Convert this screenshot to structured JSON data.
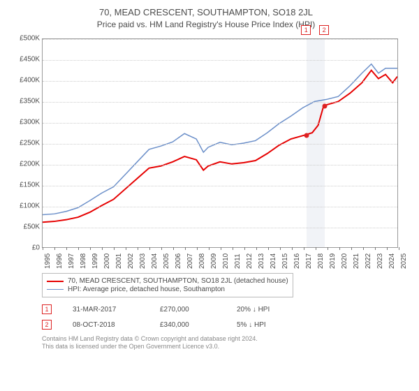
{
  "title": "70, MEAD CRESCENT, SOUTHAMPTON, SO18 2JL",
  "subtitle": "Price paid vs. HM Land Registry's House Price Index (HPI)",
  "chart": {
    "type": "line",
    "background_color": "#ffffff",
    "grid_color": "#cccccc",
    "border_color": "#999999",
    "ylabel_prefix": "£",
    "ylim": [
      0,
      500000
    ],
    "ytick_step": 50000,
    "yticks": [
      "£0",
      "£50K",
      "£100K",
      "£150K",
      "£200K",
      "£250K",
      "£300K",
      "£350K",
      "£400K",
      "£450K",
      "£500K"
    ],
    "xlim": [
      1995,
      2025
    ],
    "xticks": [
      1995,
      1996,
      1997,
      1998,
      1999,
      2000,
      2001,
      2002,
      2003,
      2004,
      2005,
      2006,
      2007,
      2008,
      2009,
      2010,
      2011,
      2012,
      2013,
      2014,
      2015,
      2016,
      2017,
      2018,
      2019,
      2020,
      2021,
      2022,
      2023,
      2024,
      2025
    ],
    "label_fontsize": 10,
    "highlight_band": {
      "x_start": 2017.25,
      "x_end": 2018.77,
      "fill": "#e8ebf2"
    },
    "series": [
      {
        "name": "70, MEAD CRESCENT, SOUTHAMPTON, SO18 2JL (detached house)",
        "color": "#e60000",
        "line_width": 2,
        "data": [
          [
            1995,
            60000
          ],
          [
            1996,
            62000
          ],
          [
            1997,
            66000
          ],
          [
            1998,
            72000
          ],
          [
            1999,
            84000
          ],
          [
            2000,
            100000
          ],
          [
            2001,
            115000
          ],
          [
            2002,
            140000
          ],
          [
            2003,
            165000
          ],
          [
            2004,
            190000
          ],
          [
            2005,
            195000
          ],
          [
            2006,
            205000
          ],
          [
            2007,
            218000
          ],
          [
            2008,
            210000
          ],
          [
            2008.6,
            185000
          ],
          [
            2009,
            195000
          ],
          [
            2010,
            205000
          ],
          [
            2011,
            200000
          ],
          [
            2012,
            203000
          ],
          [
            2013,
            208000
          ],
          [
            2014,
            225000
          ],
          [
            2015,
            245000
          ],
          [
            2016,
            260000
          ],
          [
            2017.25,
            270000
          ],
          [
            2017.8,
            275000
          ],
          [
            2018.3,
            293000
          ],
          [
            2018.77,
            340000
          ],
          [
            2019,
            342000
          ],
          [
            2020,
            350000
          ],
          [
            2021,
            370000
          ],
          [
            2022,
            395000
          ],
          [
            2022.8,
            425000
          ],
          [
            2023.4,
            405000
          ],
          [
            2024,
            415000
          ],
          [
            2024.6,
            395000
          ],
          [
            2025,
            410000
          ]
        ]
      },
      {
        "name": "HPI: Average price, detached house, Southampton",
        "color": "#6b8fc9",
        "line_width": 1.5,
        "data": [
          [
            1995,
            78000
          ],
          [
            1996,
            80000
          ],
          [
            1997,
            86000
          ],
          [
            1998,
            95000
          ],
          [
            1999,
            112000
          ],
          [
            2000,
            130000
          ],
          [
            2001,
            145000
          ],
          [
            2002,
            175000
          ],
          [
            2003,
            205000
          ],
          [
            2004,
            235000
          ],
          [
            2005,
            243000
          ],
          [
            2006,
            253000
          ],
          [
            2007,
            273000
          ],
          [
            2008,
            260000
          ],
          [
            2008.6,
            228000
          ],
          [
            2009,
            240000
          ],
          [
            2010,
            252000
          ],
          [
            2011,
            246000
          ],
          [
            2012,
            250000
          ],
          [
            2013,
            256000
          ],
          [
            2014,
            275000
          ],
          [
            2015,
            297000
          ],
          [
            2016,
            315000
          ],
          [
            2017,
            335000
          ],
          [
            2018,
            350000
          ],
          [
            2019,
            355000
          ],
          [
            2020,
            362000
          ],
          [
            2021,
            388000
          ],
          [
            2022,
            418000
          ],
          [
            2022.8,
            440000
          ],
          [
            2023.4,
            418000
          ],
          [
            2024,
            430000
          ],
          [
            2025,
            430000
          ]
        ]
      }
    ],
    "markers": [
      {
        "id": "1",
        "x": 2017.25,
        "y": 270000,
        "color": "#d22"
      },
      {
        "id": "2",
        "x": 2018.77,
        "y": 340000,
        "color": "#d22"
      }
    ]
  },
  "legend": {
    "items": [
      {
        "color": "#e60000",
        "width": 2,
        "label": "70, MEAD CRESCENT, SOUTHAMPTON, SO18 2JL (detached house)"
      },
      {
        "color": "#6b8fc9",
        "width": 1.5,
        "label": "HPI: Average price, detached house, Southampton"
      }
    ]
  },
  "transactions": [
    {
      "id": "1",
      "date": "31-MAR-2017",
      "price": "£270,000",
      "diff": "20% ↓ HPI"
    },
    {
      "id": "2",
      "date": "08-OCT-2018",
      "price": "£340,000",
      "diff": "5% ↓ HPI"
    }
  ],
  "footer": {
    "line1": "Contains HM Land Registry data © Crown copyright and database right 2024.",
    "line2": "This data is licensed under the Open Government Licence v3.0."
  }
}
